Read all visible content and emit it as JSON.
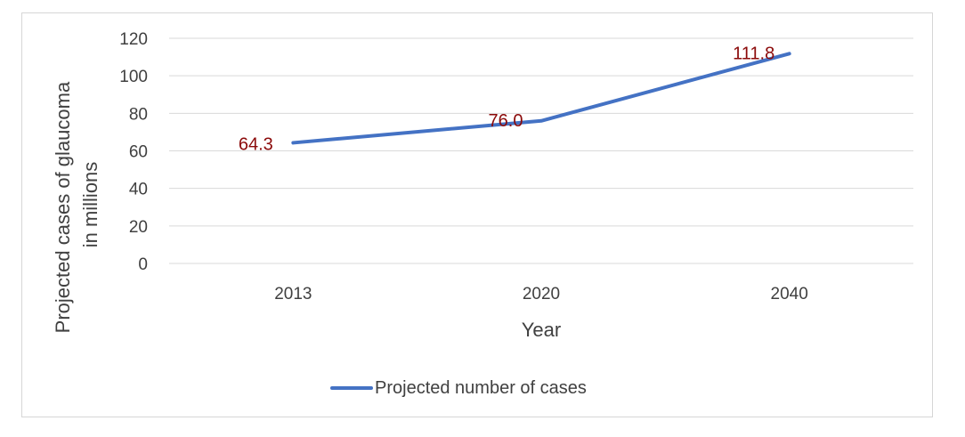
{
  "chart_data": {
    "type": "line",
    "categories": [
      "2013",
      "2020",
      "2040"
    ],
    "series": [
      {
        "name": "Projected number of cases",
        "values": [
          64.3,
          76.0,
          111.8
        ],
        "color": "#4472c4"
      }
    ],
    "data_labels": [
      "64.3",
      "76.0",
      "111.8"
    ],
    "title": "",
    "xlabel": "Year",
    "ylabel_lines": [
      "Projected cases of glaucoma",
      "in millions"
    ],
    "ylim": [
      0,
      120
    ],
    "yticks": [
      0,
      20,
      40,
      60,
      80,
      100,
      120
    ],
    "grid": true,
    "legend": "bottom",
    "colors": {
      "gridline": "#d9d9d9",
      "data_label": "#8b0a0a",
      "text": "#404040"
    }
  }
}
